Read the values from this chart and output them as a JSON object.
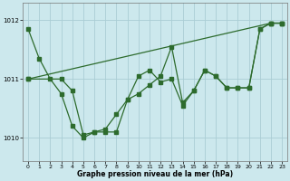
{
  "background_color": "#cce8ed",
  "grid_color": "#aacdd4",
  "line_color": "#2d6b2d",
  "xlabel": "Graphe pression niveau de la mer (hPa)",
  "ylim": [
    1009.6,
    1012.3
  ],
  "xlim": [
    -0.5,
    23.5
  ],
  "yticks": [
    1010,
    1011,
    1012
  ],
  "xticks": [
    0,
    1,
    2,
    3,
    4,
    5,
    6,
    7,
    8,
    9,
    10,
    11,
    12,
    13,
    14,
    15,
    16,
    17,
    18,
    19,
    20,
    21,
    22,
    23
  ],
  "series1_x": [
    0,
    1,
    2,
    3,
    4,
    5,
    6,
    7,
    8,
    9,
    10,
    11,
    12,
    13,
    14,
    15,
    16,
    17,
    18,
    19,
    20,
    21,
    22,
    23
  ],
  "series1_y": [
    1011.85,
    1011.35,
    1011.0,
    1010.75,
    1010.2,
    1010.0,
    1010.1,
    1010.15,
    1010.4,
    1010.65,
    1010.75,
    1010.9,
    1011.05,
    1011.55,
    1010.6,
    1010.8,
    1011.15,
    1011.05,
    1010.85,
    1010.85,
    1010.85,
    1011.85,
    1011.95,
    1011.95
  ],
  "series2_x": [
    0,
    3,
    4,
    5,
    6,
    7,
    8,
    9,
    10,
    11,
    12,
    13,
    14,
    15,
    16,
    17,
    18,
    19,
    20,
    21,
    22,
    23
  ],
  "series2_y": [
    1011.0,
    1011.0,
    1010.8,
    1010.05,
    1010.1,
    1010.1,
    1010.1,
    1010.65,
    1011.05,
    1011.15,
    1010.95,
    1011.0,
    1010.55,
    1010.8,
    1011.15,
    1011.05,
    1010.85,
    1010.85,
    1010.85,
    1011.85,
    1011.95,
    1011.95
  ],
  "series3_x": [
    0,
    22,
    23
  ],
  "series3_y": [
    1011.0,
    1011.95,
    1011.95
  ],
  "figsize": [
    3.2,
    2.0
  ],
  "dpi": 100
}
